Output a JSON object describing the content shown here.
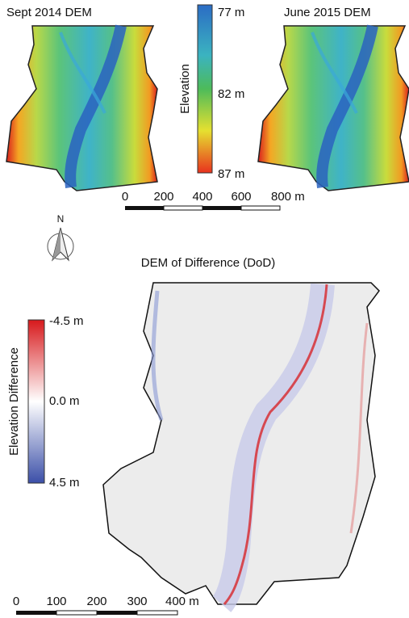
{
  "top_maps": {
    "left_title": "Sept 2014 DEM",
    "right_title": "June 2015 DEM"
  },
  "elevation_legend": {
    "title": "Elevation",
    "labels": [
      "77 m",
      "82 m",
      "87 m"
    ]
  },
  "top_scale_bar": {
    "labels": [
      "0",
      "200",
      "400",
      "600",
      "800 m"
    ]
  },
  "north_arrow": {
    "label": "N"
  },
  "dod_map": {
    "title": "DEM of Difference (DoD)"
  },
  "difference_legend": {
    "title": "Elevation Difference",
    "labels": [
      "-4.5 m",
      "0.0 m",
      "4.5 m"
    ]
  },
  "bottom_scale_bar": {
    "labels": [
      "0",
      "100",
      "200",
      "300",
      "400 m"
    ]
  }
}
